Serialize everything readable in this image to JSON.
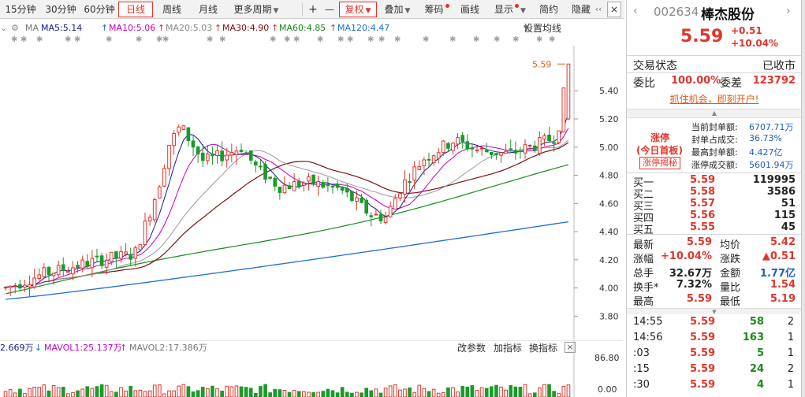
{
  "toolbar": {
    "periods": [
      "15分钟",
      "30分钟",
      "60分钟",
      "日线",
      "周线",
      "月线",
      "更多周期"
    ],
    "active_period": "日线",
    "tools": [
      "+",
      "—",
      "复权",
      "叠加",
      "筹码",
      "画线",
      "显示",
      "简约",
      "隐藏"
    ],
    "active_tool": "复权"
  },
  "ma_bar": {
    "ma": "MA",
    "ma5": "MA5:5.14",
    "ma10": "MA10:5.06",
    "ma20": "MA20:5.03",
    "ma30": "MA30:4.90",
    "ma60": "MA60:4.85",
    "ma120": "MA120:4.47",
    "settings": "设置均线"
  },
  "colors": {
    "up": "#e0352b",
    "down": "#1a9a2a",
    "ma5": "#1a1a8a",
    "ma10": "#c000c0",
    "ma20": "#9a9a9a",
    "ma30": "#7a1010",
    "ma60": "#1a8a1a",
    "ma120": "#1f6fd0",
    "accent": "#e0352b"
  },
  "chart_data": {
    "type": "candlestick",
    "ylim": [
      3.64,
      5.72
    ],
    "y_ticks": [
      "5.40",
      "5.20",
      "5.00",
      "4.80",
      "4.60",
      "4.40",
      "4.20",
      "4.00",
      "3.80"
    ],
    "last_price_label": "5.59",
    "ma120": [
      3.92,
      4.47
    ],
    "ma60": [
      3.96,
      4.85
    ],
    "volume": {
      "vol_label": "2.669万",
      "mavol1": "MAVOL1:25.137万",
      "mavol2": "MAVOL2:17.386万",
      "y_ticks": [
        "86.80",
        "0.00"
      ],
      "actions": [
        "改参数",
        "加指标",
        "换指标"
      ]
    }
  },
  "quote": {
    "code": "002634",
    "name": "棒杰股份",
    "price": "5.59",
    "change": "+0.51",
    "change_pct": "+10.04%",
    "status_label": "交易状态",
    "status_value": "已收市",
    "weibi_label": "委比",
    "weibi_value": "100.00%",
    "weicha_label": "委差",
    "weicha_value": "123792",
    "promo": "抓住机会，即刻开户!",
    "limit_up": {
      "title": "涨停",
      "badge": "(今日首板)",
      "button": "涨停揭秘",
      "rows": [
        {
          "label": "当前封单额:",
          "value": "6707.71万"
        },
        {
          "label": "封单占成交:",
          "value": "36.73%"
        },
        {
          "label": "最高封单额:",
          "value": "4.427亿"
        },
        {
          "label": "涨停成交额:",
          "value": "5601.94万"
        }
      ]
    },
    "order_book": [
      {
        "label": "买一",
        "price": "5.59",
        "volume": "119995"
      },
      {
        "label": "买二",
        "price": "5.58",
        "volume": "3586"
      },
      {
        "label": "买三",
        "price": "5.57",
        "volume": "51"
      },
      {
        "label": "买四",
        "price": "5.56",
        "volume": "115"
      },
      {
        "label": "买五",
        "price": "5.55",
        "volume": "45"
      }
    ],
    "stats": [
      {
        "l1": "最新",
        "v1": "5.59",
        "l2": "均价",
        "v2": "5.42"
      },
      {
        "l1": "涨幅",
        "v1": "+10.04%",
        "l2": "涨跌",
        "v2": "▲0.51"
      },
      {
        "l1": "总手",
        "v1": "32.67万",
        "l2": "金额",
        "v2": "1.77亿"
      },
      {
        "l1": "换手*",
        "v1": "7.32%",
        "l2": "量比",
        "v2": "1.54"
      },
      {
        "l1": "最高",
        "v1": "5.59",
        "l2": "最低",
        "v2": "5.19"
      }
    ],
    "ticks": [
      {
        "time": "14:55",
        "price": "5.59",
        "vol": "58",
        "n": "2"
      },
      {
        "time": "14:56",
        "price": "5.59",
        "vol": "163",
        "n": "1"
      },
      {
        "time": ":03",
        "price": "5.59",
        "vol": "5",
        "n": "1"
      },
      {
        "time": ":15",
        "price": "5.59",
        "vol": "24",
        "n": "2"
      },
      {
        "time": ":30",
        "price": "5.59",
        "vol": "4",
        "n": "1"
      }
    ]
  }
}
